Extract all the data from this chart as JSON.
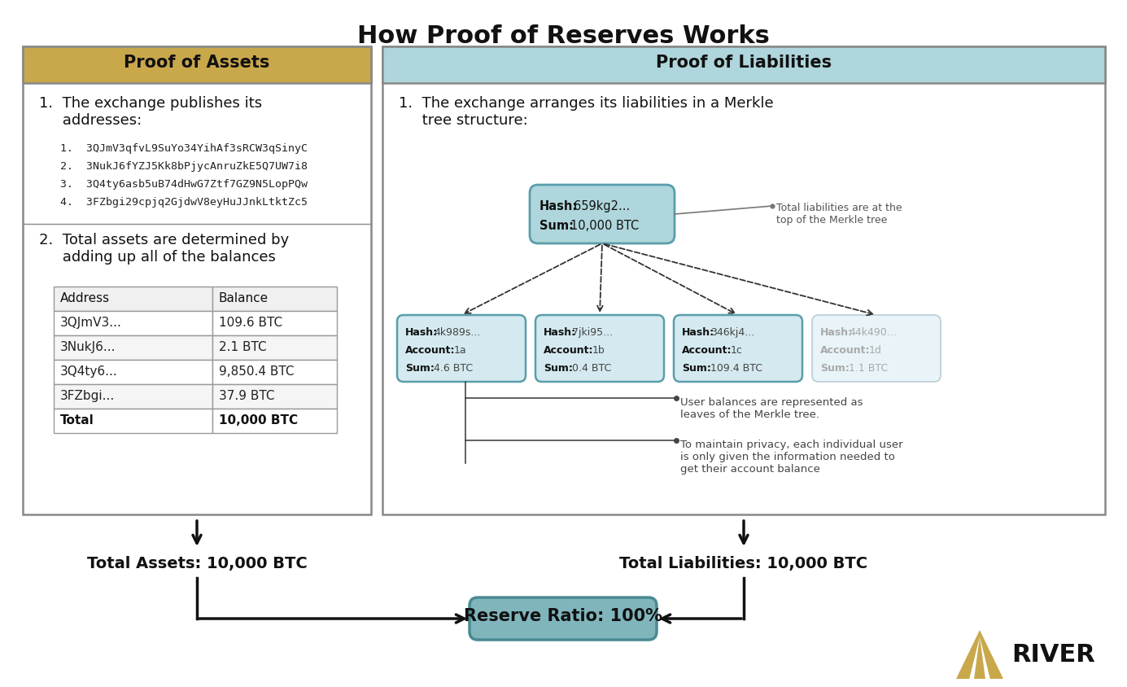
{
  "title": "How Proof of Reserves Works",
  "bg_color": "#ffffff",
  "left_panel": {
    "header": "Proof of Assets",
    "header_bg": "#c9a84c",
    "section1_title": "1.  The exchange publishes its\n     addresses:",
    "addresses": [
      "1.  3QJmV3qfvL9SuYo34YihAf3sRCW3qSinyC",
      "2.  3NukJ6fYZJ5Kk8bPjycAnruZkE5Q7UW7i8",
      "3.  3Q4ty6asb5uB74dHwG7Ztf7GZ9N5LopPQw",
      "4.  3FZbgi29cpjq2GjdwV8eyHuJJnkLtktZc5"
    ],
    "section2_title": "2.  Total assets are determined by\n     adding up all of the balances",
    "table_headers": [
      "Address",
      "Balance"
    ],
    "table_rows": [
      [
        "3QJmV3...",
        "109.6 BTC"
      ],
      [
        "3NukJ6...",
        "2.1 BTC"
      ],
      [
        "3Q4ty6...",
        "9,850.4 BTC"
      ],
      [
        "3FZbgi...",
        "37.9 BTC"
      ]
    ],
    "table_total": [
      "Total",
      "10,000 BTC"
    ]
  },
  "right_panel": {
    "header": "Proof of Liabilities",
    "header_bg": "#aed6dc",
    "section1_title": "1.  The exchange arranges its liabilities in a Merkle\n     tree structure:",
    "root_node": {
      "hash_label": "Hash:",
      "hash_val": " 659kg2...",
      "sum_label": "Sum:",
      "sum_val": " 10,000 BTC",
      "bg": "#aed6dc",
      "border": "#5a9eaa"
    },
    "leaf_nodes": [
      {
        "hash_label": "Hash:",
        "hash_val": " 4k989s...",
        "account_label": "Account:",
        "account_val": " 1a",
        "sum_label": "Sum:",
        "sum_val": " 4.6 BTC",
        "bg": "#d4eaf0",
        "border": "#5a9eaa",
        "faded": false
      },
      {
        "hash_label": "Hash:",
        "hash_val": " 7jki95...",
        "account_label": "Account:",
        "account_val": " 1b",
        "sum_label": "Sum:",
        "sum_val": " 0.4 BTC",
        "bg": "#d4eaf0",
        "border": "#5a9eaa",
        "faded": false
      },
      {
        "hash_label": "Hash:",
        "hash_val": " 346kj4...",
        "account_label": "Account:",
        "account_val": " 1c",
        "sum_label": "Sum:",
        "sum_val": " 109.4 BTC",
        "bg": "#d4eaf0",
        "border": "#5a9eaa",
        "faded": false
      },
      {
        "hash_label": "Hash:",
        "hash_val": " 44k490...",
        "account_label": "Account:",
        "account_val": " 1d",
        "sum_label": "Sum:",
        "sum_val": " 1.1 BTC",
        "bg": "#e8f4f8",
        "border": "#bbccd8",
        "faded": true
      }
    ],
    "annotation_top": "Total liabilities are at the\ntop of the Merkle tree",
    "annotation_leaf1": "User balances are represented as\nleaves of the Merkle tree.",
    "annotation_leaf2": "To maintain privacy, each individual user\nis only given the information needed to\nget their account balance"
  },
  "bottom": {
    "total_assets": "Total Assets: 10,000 BTC",
    "total_liabilities": "Total Liabilities: 10,000 BTC",
    "reserve_ratio": "Reserve Ratio: 100%",
    "reserve_bg": "#80b5bc",
    "reserve_border": "#4a8a92"
  },
  "river_logo_color": "#c9a84c",
  "panel_border": "#888888",
  "divider_color": "#888888"
}
